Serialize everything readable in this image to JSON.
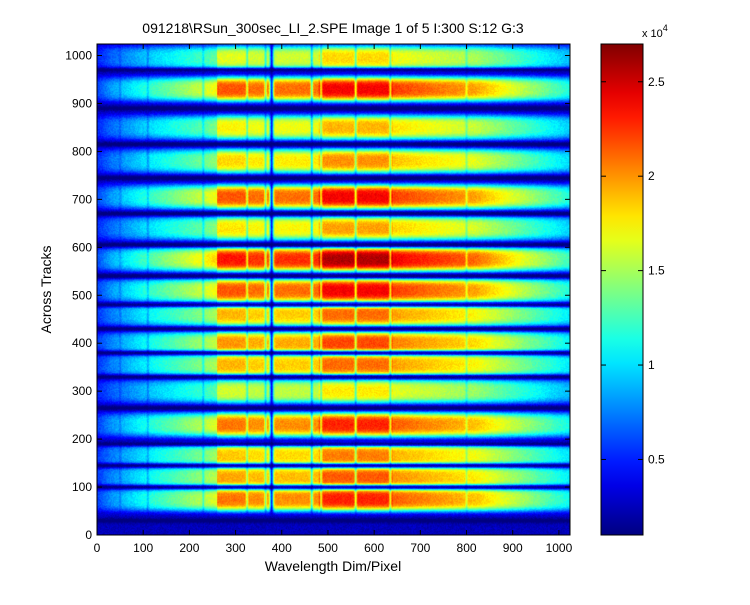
{
  "chart_data": {
    "type": "heatmap",
    "title": "091218\\RSun_300sec_LI_2.SPE  Image 1 of 5  I:300  S:12  G:3",
    "xlabel": "Wavelength Dim/Pixel",
    "ylabel": "Across Tracks",
    "xlim": [
      0,
      1024
    ],
    "ylim": [
      0,
      1024
    ],
    "xticks": [
      0,
      100,
      200,
      300,
      400,
      500,
      600,
      700,
      800,
      900,
      1000
    ],
    "yticks": [
      0,
      100,
      200,
      300,
      400,
      500,
      600,
      700,
      800,
      900,
      1000
    ],
    "colorbar": {
      "colormap": "jet",
      "range": [
        1000,
        27000
      ],
      "ticks": [
        0.5,
        1,
        1.5,
        2,
        2.5
      ],
      "tick_labels": [
        "0.5",
        "1",
        "1.5",
        "2",
        "2.5"
      ],
      "exponent_label": "x 10",
      "exponent_power": "4"
    },
    "tracks": [
      {
        "y_center": 75,
        "peak": 24000
      },
      {
        "y_center": 120,
        "peak": 22500
      },
      {
        "y_center": 165,
        "peak": 21500
      },
      {
        "y_center": 230,
        "peak": 24000
      },
      {
        "y_center": 300,
        "peak": 18500
      },
      {
        "y_center": 355,
        "peak": 22000
      },
      {
        "y_center": 400,
        "peak": 23000
      },
      {
        "y_center": 460,
        "peak": 22000
      },
      {
        "y_center": 510,
        "peak": 25000
      },
      {
        "y_center": 575,
        "peak": 27000
      },
      {
        "y_center": 640,
        "peak": 20500
      },
      {
        "y_center": 705,
        "peak": 25000
      },
      {
        "y_center": 780,
        "peak": 21000
      },
      {
        "y_center": 850,
        "peak": 20000
      },
      {
        "y_center": 930,
        "peak": 25000
      },
      {
        "y_center": 995,
        "peak": 19000
      }
    ],
    "dark_gaps": [
      30,
      100,
      145,
      190,
      265,
      330,
      380,
      430,
      480,
      540,
      605,
      670,
      745,
      815,
      890,
      970
    ],
    "absorption_columns": [
      {
        "x": 378,
        "depth": 0.85
      },
      {
        "x": 365,
        "depth": 0.35
      },
      {
        "x": 325,
        "depth": 0.3
      },
      {
        "x": 465,
        "depth": 0.45
      },
      {
        "x": 485,
        "depth": 0.3
      },
      {
        "x": 560,
        "depth": 0.35
      },
      {
        "x": 635,
        "depth": 0.3
      },
      {
        "x": 800,
        "depth": 0.2
      },
      {
        "x": 230,
        "depth": 0.25
      },
      {
        "x": 110,
        "depth": 0.25
      },
      {
        "x": 50,
        "depth": 0.2
      }
    ]
  }
}
